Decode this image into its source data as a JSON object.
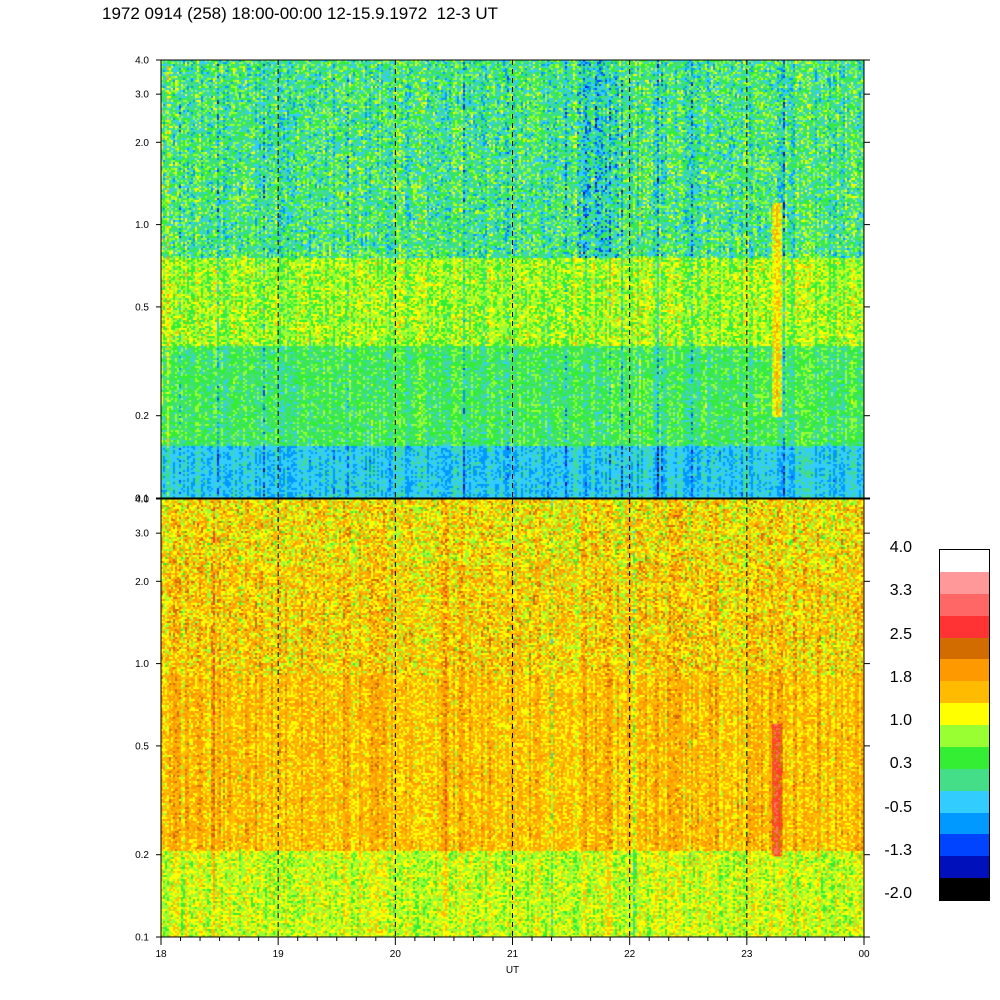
{
  "title": "1972 0914 (258) 18:00-00:00 12-15.9.1972  12-3 UT",
  "chart_data": [
    {
      "type": "heatmap",
      "panel": "upper",
      "x_range": [
        "18:00",
        "00:00"
      ],
      "xlabel": "",
      "ylabel": "",
      "y_scale": "log",
      "ylim": [
        0.1,
        4.0
      ],
      "y_ticks": [
        "0.1",
        "0.2",
        "0.5",
        "1.0",
        "2.0",
        "3.0",
        "4.0"
      ],
      "vertical_marker_times": [
        "19",
        "20",
        "21",
        "22",
        "23"
      ],
      "dominant_value_range": [
        -0.5,
        1.0
      ],
      "notable_features": [
        {
          "time": "23:15",
          "freq_range": [
            0.2,
            1.2
          ],
          "value": 1.5
        }
      ]
    },
    {
      "type": "heatmap",
      "panel": "lower",
      "x_range": [
        "18:00",
        "00:00"
      ],
      "xlabel": "UT",
      "ylabel": "",
      "y_scale": "log",
      "ylim": [
        0.1,
        4.0
      ],
      "y_ticks": [
        "0.1",
        "0.2",
        "0.5",
        "1.0",
        "2.0",
        "3.0",
        "4.0"
      ],
      "x_ticks": [
        "18",
        "19",
        "20",
        "21",
        "22",
        "23",
        "00"
      ],
      "vertical_marker_times": [
        "19",
        "20",
        "21",
        "22",
        "23"
      ],
      "dominant_value_range": [
        1.0,
        2.2
      ],
      "notable_features": [
        {
          "time": "23:15",
          "freq_range": [
            0.2,
            0.6
          ],
          "value": 2.8
        }
      ]
    }
  ],
  "colorbar": {
    "labels": [
      "4.0",
      "3.3",
      "2.5",
      "1.8",
      "1.0",
      "0.3",
      "-0.5",
      "-1.3",
      "-2.0"
    ],
    "colors": [
      "#ffffff",
      "#ff9999",
      "#ff6666",
      "#ff3333",
      "#d26c00",
      "#ff9900",
      "#ffbb00",
      "#ffff00",
      "#99ff33",
      "#33ee33",
      "#44dd88",
      "#33ccff",
      "#0099ff",
      "#0044ff",
      "#0011bb",
      "#000000"
    ]
  }
}
